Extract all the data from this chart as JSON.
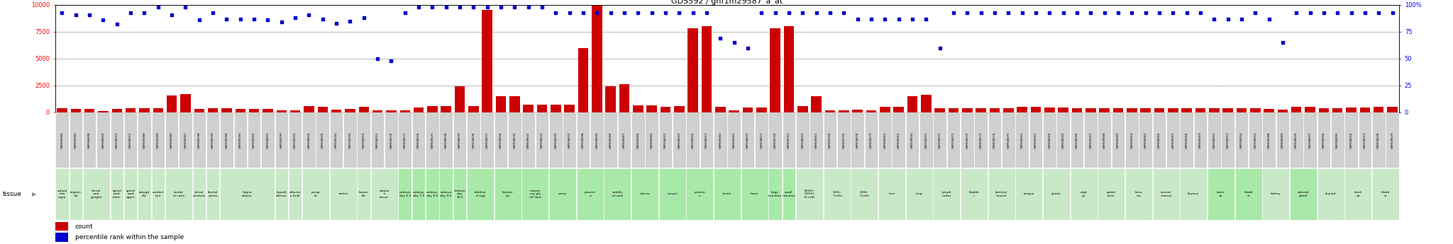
{
  "title": "GDS592 / gnf1m29587_a_at",
  "bar_color": "#cc0000",
  "dot_color": "#0000cc",
  "left_ylim": [
    0,
    10000
  ],
  "right_ylim": [
    0,
    100
  ],
  "left_yticks": [
    0,
    2500,
    5000,
    7500,
    10000
  ],
  "right_yticks": [
    0,
    25,
    50,
    75,
    100
  ],
  "right_yticklabels": [
    "0",
    "25",
    "50",
    "75",
    "100%"
  ],
  "samples": [
    {
      "gsm": "GSM18584",
      "tissue": "substa\nntia\nnigra",
      "count": 350,
      "pct": 93,
      "tc": "#c8e8c8"
    },
    {
      "gsm": "GSM18585",
      "tissue": "trigemi\nnal",
      "count": 340,
      "pct": 91,
      "tc": "#c8e8c8"
    },
    {
      "gsm": "GSM18608",
      "tissue": "dorsal\nroot\nganglia",
      "count": 330,
      "pct": 91,
      "tc": "#c8e8c8"
    },
    {
      "gsm": "GSM18609",
      "tissue": "dorsal\nroot\nganglia",
      "count": 100,
      "pct": 86,
      "tc": "#c8e8c8"
    },
    {
      "gsm": "GSM18610",
      "tissue": "spinal\ncord\nlower",
      "count": 280,
      "pct": 82,
      "tc": "#c8e8c8"
    },
    {
      "gsm": "GSM18611",
      "tissue": "spinal\ncord\nupper",
      "count": 380,
      "pct": 93,
      "tc": "#c8e8c8"
    },
    {
      "gsm": "GSM18588",
      "tissue": "amygd\nala",
      "count": 380,
      "pct": 93,
      "tc": "#c8e8c8"
    },
    {
      "gsm": "GSM18589",
      "tissue": "cerebel\nlum",
      "count": 350,
      "pct": 98,
      "tc": "#c8e8c8"
    },
    {
      "gsm": "GSM18586",
      "tissue": "cerebr\nal corte",
      "count": 1550,
      "pct": 91,
      "tc": "#c8e8c8"
    },
    {
      "gsm": "GSM18587",
      "tissue": "cerebr\nal corte",
      "count": 1700,
      "pct": 98,
      "tc": "#c8e8c8"
    },
    {
      "gsm": "GSM18598",
      "tissue": "dorsal\nstriatum",
      "count": 310,
      "pct": 86,
      "tc": "#c8e8c8"
    },
    {
      "gsm": "GSM18599",
      "tissue": "frontal\ncortex",
      "count": 370,
      "pct": 93,
      "tc": "#c8e8c8"
    },
    {
      "gsm": "GSM18594",
      "tissue": "hippoc\nampus",
      "count": 350,
      "pct": 87,
      "tc": "#c8e8c8"
    },
    {
      "gsm": "GSM18595",
      "tissue": "hippoc\nampus",
      "count": 340,
      "pct": 87,
      "tc": "#c8e8c8"
    },
    {
      "gsm": "GSM18602",
      "tissue": "hippoc\nampus",
      "count": 340,
      "pct": 87,
      "tc": "#c8e8c8"
    },
    {
      "gsm": "GSM18603",
      "tissue": "hippoc\nampus",
      "count": 340,
      "pct": 86,
      "tc": "#c8e8c8"
    },
    {
      "gsm": "GSM18590",
      "tissue": "hypoth\nalamus",
      "count": 150,
      "pct": 84,
      "tc": "#c8e8c8"
    },
    {
      "gsm": "GSM18591",
      "tissue": "olfactor\ny bulb",
      "count": 160,
      "pct": 88,
      "tc": "#c8e8c8"
    },
    {
      "gsm": "GSM18604",
      "tissue": "preop\ntic",
      "count": 550,
      "pct": 91,
      "tc": "#c8e8c8"
    },
    {
      "gsm": "GSM18605",
      "tissue": "preop\ntic",
      "count": 480,
      "pct": 87,
      "tc": "#c8e8c8"
    },
    {
      "gsm": "GSM18592",
      "tissue": "retina",
      "count": 270,
      "pct": 83,
      "tc": "#c8e8c8"
    },
    {
      "gsm": "GSM18593",
      "tissue": "retina",
      "count": 280,
      "pct": 85,
      "tc": "#c8e8c8"
    },
    {
      "gsm": "GSM18614",
      "tissue": "brown\nfat",
      "count": 540,
      "pct": 88,
      "tc": "#c8e8c8"
    },
    {
      "gsm": "GSM18615",
      "tissue": "adipos\ne\ntissue",
      "count": 150,
      "pct": 50,
      "tc": "#c8e8c8"
    },
    {
      "gsm": "GSM18676",
      "tissue": "adipos\ne\ntissue",
      "count": 200,
      "pct": 48,
      "tc": "#c8e8c8"
    },
    {
      "gsm": "GSM18677",
      "tissue": "embryo\nday 6.5",
      "count": 200,
      "pct": 93,
      "tc": "#a8e8a8"
    },
    {
      "gsm": "GSM18624",
      "tissue": "embryo\nday 7.5",
      "count": 470,
      "pct": 98,
      "tc": "#a8e8a8"
    },
    {
      "gsm": "GSM18625",
      "tissue": "embryo\nday 8.5",
      "count": 600,
      "pct": 98,
      "tc": "#a8e8a8"
    },
    {
      "gsm": "GSM18638",
      "tissue": "embryo\nday 9.5",
      "count": 570,
      "pct": 98,
      "tc": "#a8e8a8"
    },
    {
      "gsm": "GSM18639",
      "tissue": "embryo\nday\n10.5",
      "count": 2400,
      "pct": 98,
      "tc": "#a8e8a8"
    },
    {
      "gsm": "GSM18636",
      "tissue": "fertilize\nd egg",
      "count": 600,
      "pct": 98,
      "tc": "#a8e8a8"
    },
    {
      "gsm": "GSM18637",
      "tissue": "fertilize\nd egg",
      "count": 9500,
      "pct": 98,
      "tc": "#a8e8a8"
    },
    {
      "gsm": "GSM18634",
      "tissue": "blastoc\nyts",
      "count": 1500,
      "pct": 98,
      "tc": "#a8e8a8"
    },
    {
      "gsm": "GSM18635",
      "tissue": "blastoc\nyts",
      "count": 1500,
      "pct": 98,
      "tc": "#a8e8a8"
    },
    {
      "gsm": "GSM18632",
      "tissue": "mamm\nary gla\nnd (lact",
      "count": 700,
      "pct": 98,
      "tc": "#a8e8a8"
    },
    {
      "gsm": "GSM18633",
      "tissue": "mamm\nary gla\nnd (lact",
      "count": 700,
      "pct": 98,
      "tc": "#a8e8a8"
    },
    {
      "gsm": "GSM18630",
      "tissue": "ovary",
      "count": 700,
      "pct": 93,
      "tc": "#a8e8a8"
    },
    {
      "gsm": "GSM18631",
      "tissue": "ovary",
      "count": 700,
      "pct": 93,
      "tc": "#a8e8a8"
    },
    {
      "gsm": "GSM18698",
      "tissue": "placent\na",
      "count": 6000,
      "pct": 93,
      "tc": "#a8e8a8"
    },
    {
      "gsm": "GSM18699",
      "tissue": "placent\na",
      "count": 10000,
      "pct": 93,
      "tc": "#a8e8a8"
    },
    {
      "gsm": "GSM18686",
      "tissue": "umbilic\nal cord",
      "count": 2400,
      "pct": 93,
      "tc": "#a8e8a8"
    },
    {
      "gsm": "GSM18687",
      "tissue": "umbilic\nal cord",
      "count": 2600,
      "pct": 93,
      "tc": "#a8e8a8"
    },
    {
      "gsm": "GSM18684",
      "tissue": "uterus",
      "count": 650,
      "pct": 93,
      "tc": "#a8e8a8"
    },
    {
      "gsm": "GSM18685",
      "tissue": "uterus",
      "count": 650,
      "pct": 93,
      "tc": "#a8e8a8"
    },
    {
      "gsm": "GSM18622",
      "tissue": "oocyte",
      "count": 480,
      "pct": 93,
      "tc": "#a8e8a8"
    },
    {
      "gsm": "GSM18623",
      "tissue": "oocyte",
      "count": 580,
      "pct": 93,
      "tc": "#a8e8a8"
    },
    {
      "gsm": "GSM18656",
      "tissue": "prostat\ne",
      "count": 7800,
      "pct": 93,
      "tc": "#a8e8a8"
    },
    {
      "gsm": "GSM18657",
      "tissue": "prostat\ne",
      "count": 8000,
      "pct": 93,
      "tc": "#a8e8a8"
    },
    {
      "gsm": "GSM18682",
      "tissue": "testis",
      "count": 500,
      "pct": 69,
      "tc": "#a8e8a8"
    },
    {
      "gsm": "GSM18683",
      "tissue": "testis",
      "count": 180,
      "pct": 65,
      "tc": "#a8e8a8"
    },
    {
      "gsm": "GSM18620",
      "tissue": "heart",
      "count": 450,
      "pct": 60,
      "tc": "#a8e8a8"
    },
    {
      "gsm": "GSM18621",
      "tissue": "heart",
      "count": 450,
      "pct": 93,
      "tc": "#a8e8a8"
    },
    {
      "gsm": "GSM18700",
      "tissue": "large\nintestine",
      "count": 7800,
      "pct": 93,
      "tc": "#a8e8a8"
    },
    {
      "gsm": "GSM18701",
      "tissue": "small\nintestine",
      "count": 8000,
      "pct": 93,
      "tc": "#a8e8a8"
    },
    {
      "gsm": "GSM18650",
      "tissue": "B220+\nCD19+\nB cells",
      "count": 600,
      "pct": 93,
      "tc": "#c8e8c8"
    },
    {
      "gsm": "GSM18651",
      "tissue": "B220+\nCD19+\nB cells",
      "count": 1500,
      "pct": 93,
      "tc": "#c8e8c8"
    },
    {
      "gsm": "GSM18704",
      "tissue": "CD4+\nT cells",
      "count": 180,
      "pct": 93,
      "tc": "#c8e8c8"
    },
    {
      "gsm": "GSM18705",
      "tissue": "CD4+\nT cells",
      "count": 160,
      "pct": 93,
      "tc": "#c8e8c8"
    },
    {
      "gsm": "GSM18678",
      "tissue": "CD8+\nT cells",
      "count": 220,
      "pct": 87,
      "tc": "#c8e8c8"
    },
    {
      "gsm": "GSM18679",
      "tissue": "CD8+\nT cells",
      "count": 200,
      "pct": 87,
      "tc": "#c8e8c8"
    },
    {
      "gsm": "GSM18660",
      "tissue": "liver",
      "count": 480,
      "pct": 87,
      "tc": "#c8e8c8"
    },
    {
      "gsm": "GSM18661",
      "tissue": "liver",
      "count": 520,
      "pct": 87,
      "tc": "#c8e8c8"
    },
    {
      "gsm": "GSM18690",
      "tissue": "lung",
      "count": 1500,
      "pct": 87,
      "tc": "#c8e8c8"
    },
    {
      "gsm": "GSM18691",
      "tissue": "lung",
      "count": 1600,
      "pct": 87,
      "tc": "#c8e8c8"
    },
    {
      "gsm": "GSM18670",
      "tissue": "lymph\nnodes",
      "count": 350,
      "pct": 60,
      "tc": "#c8e8c8"
    },
    {
      "gsm": "GSM18671",
      "tissue": "lymph\nnodes",
      "count": 350,
      "pct": 93,
      "tc": "#c8e8c8"
    },
    {
      "gsm": "GSM18672",
      "tissue": "bladde\nr",
      "count": 400,
      "pct": 93,
      "tc": "#c8e8c8"
    },
    {
      "gsm": "GSM18673",
      "tissue": "bladde\nr",
      "count": 400,
      "pct": 93,
      "tc": "#c8e8c8"
    },
    {
      "gsm": "GSM18674",
      "tissue": "skeletal\nmuscle",
      "count": 350,
      "pct": 93,
      "tc": "#c8e8c8"
    },
    {
      "gsm": "GSM18675",
      "tissue": "skeletal\nmuscle",
      "count": 350,
      "pct": 93,
      "tc": "#c8e8c8"
    },
    {
      "gsm": "GSM18642",
      "tissue": "tongue",
      "count": 500,
      "pct": 93,
      "tc": "#c8e8c8"
    },
    {
      "gsm": "GSM18643",
      "tissue": "tongue",
      "count": 500,
      "pct": 93,
      "tc": "#c8e8c8"
    },
    {
      "gsm": "GSM18644",
      "tissue": "gluttis",
      "count": 450,
      "pct": 93,
      "tc": "#c8e8c8"
    },
    {
      "gsm": "GSM18645",
      "tissue": "gluttis",
      "count": 450,
      "pct": 93,
      "tc": "#c8e8c8"
    },
    {
      "gsm": "GSM18646",
      "tissue": "digit\ngs",
      "count": 400,
      "pct": 93,
      "tc": "#c8e8c8"
    },
    {
      "gsm": "GSM18647",
      "tissue": "digit\ngs",
      "count": 400,
      "pct": 93,
      "tc": "#c8e8c8"
    },
    {
      "gsm": "GSM18648",
      "tissue": "spider\nbone",
      "count": 380,
      "pct": 93,
      "tc": "#c8e8c8"
    },
    {
      "gsm": "GSM18649",
      "tissue": "spider\nbone",
      "count": 380,
      "pct": 93,
      "tc": "#c8e8c8"
    },
    {
      "gsm": "GSM18664",
      "tissue": "bone\nma",
      "count": 380,
      "pct": 93,
      "tc": "#c8e8c8"
    },
    {
      "gsm": "GSM18665",
      "tissue": "bone\nma",
      "count": 380,
      "pct": 93,
      "tc": "#c8e8c8"
    },
    {
      "gsm": "GSM18666",
      "tissue": "sternal\nmarrow",
      "count": 380,
      "pct": 93,
      "tc": "#c8e8c8"
    },
    {
      "gsm": "GSM18667",
      "tissue": "sternal\nmarrow",
      "count": 380,
      "pct": 93,
      "tc": "#c8e8c8"
    },
    {
      "gsm": "GSM18668",
      "tissue": "thymus",
      "count": 400,
      "pct": 93,
      "tc": "#c8e8c8"
    },
    {
      "gsm": "GSM18669",
      "tissue": "thymus",
      "count": 400,
      "pct": 93,
      "tc": "#c8e8c8"
    },
    {
      "gsm": "GSM18652",
      "tissue": "trach\nea",
      "count": 350,
      "pct": 87,
      "tc": "#a8e8a8"
    },
    {
      "gsm": "GSM18653",
      "tissue": "trach\nea",
      "count": 350,
      "pct": 87,
      "tc": "#a8e8a8"
    },
    {
      "gsm": "GSM18654",
      "tissue": "bladd\ner",
      "count": 380,
      "pct": 87,
      "tc": "#a8e8a8"
    },
    {
      "gsm": "GSM18655",
      "tissue": "bladd\ner",
      "count": 380,
      "pct": 93,
      "tc": "#a8e8a8"
    },
    {
      "gsm": "GSM18688",
      "tissue": "kidney",
      "count": 280,
      "pct": 87,
      "tc": "#c8e8c8"
    },
    {
      "gsm": "GSM18689",
      "tissue": "kidney",
      "count": 220,
      "pct": 65,
      "tc": "#c8e8c8"
    },
    {
      "gsm": "GSM18626",
      "tissue": "adrenal\ngland",
      "count": 500,
      "pct": 93,
      "tc": "#a8e8a8"
    },
    {
      "gsm": "GSM18627",
      "tissue": "adrenal\ngland",
      "count": 520,
      "pct": 93,
      "tc": "#a8e8a8"
    },
    {
      "gsm": "GSM18694",
      "tissue": "thyroid",
      "count": 350,
      "pct": 93,
      "tc": "#c8e8c8"
    },
    {
      "gsm": "GSM18695",
      "tissue": "thyroid",
      "count": 350,
      "pct": 93,
      "tc": "#c8e8c8"
    },
    {
      "gsm": "GSM18618",
      "tissue": "trach\nea",
      "count": 430,
      "pct": 93,
      "tc": "#c8e8c8"
    },
    {
      "gsm": "GSM18619",
      "tissue": "trach\nea",
      "count": 470,
      "pct": 93,
      "tc": "#c8e8c8"
    },
    {
      "gsm": "GSM18628",
      "tissue": "bladd\ner",
      "count": 500,
      "pct": 93,
      "tc": "#c8e8c8"
    },
    {
      "gsm": "GSM18629",
      "tissue": "bladd\ner",
      "count": 540,
      "pct": 93,
      "tc": "#c8e8c8"
    }
  ]
}
